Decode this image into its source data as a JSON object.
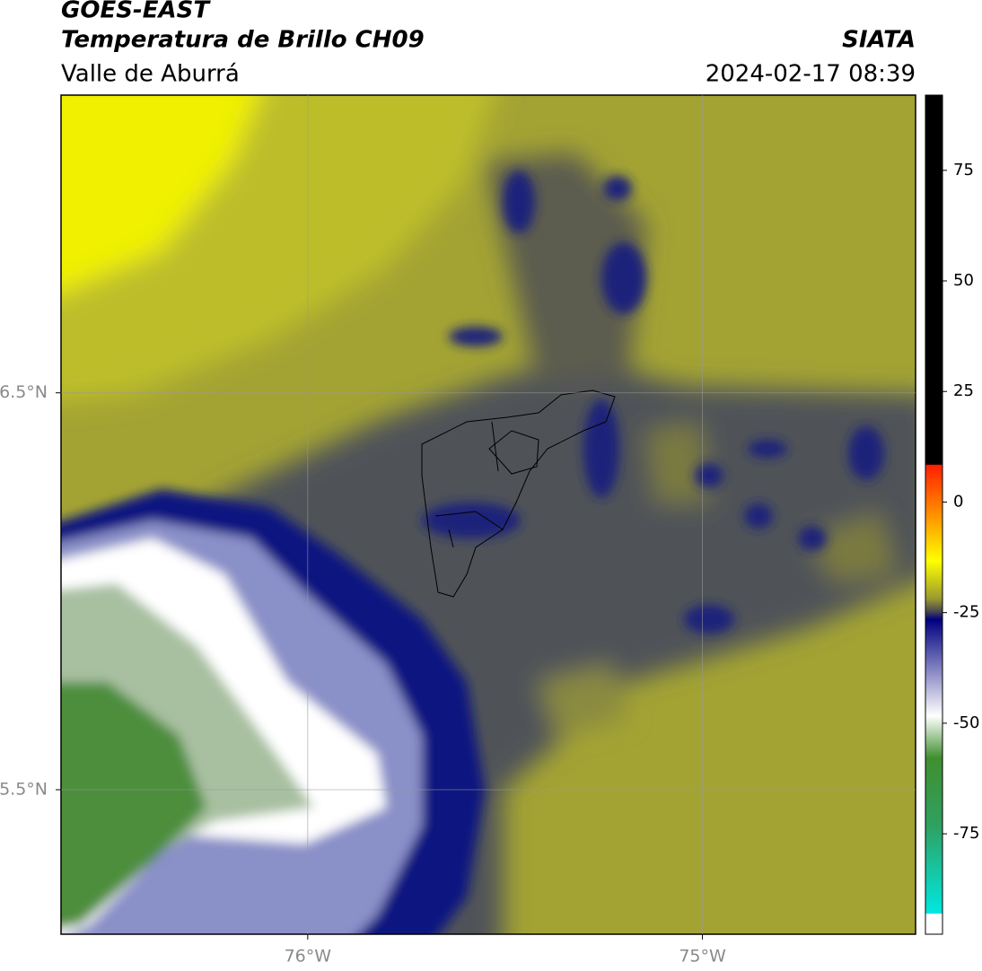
{
  "header": {
    "title": "GOES-EAST",
    "subtitle": "Temperatura de Brillo CH09",
    "region": "Valle de Aburrá",
    "source": "SIATA",
    "datetime": "2024-02-17 08:39"
  },
  "map": {
    "xlim": [
      -76.625,
      -74.46
    ],
    "ylim": [
      5.136,
      7.25
    ],
    "xticks": [
      {
        "value": -76,
        "label": "76°W"
      },
      {
        "value": -75,
        "label": "75°W"
      }
    ],
    "yticks": [
      {
        "value": 6.5,
        "label": "6.5°N"
      },
      {
        "value": 5.5,
        "label": "5.5°N"
      }
    ],
    "grid": true
  },
  "colorbar": {
    "lim": [
      -97.7,
      92
    ],
    "ticks": [
      75,
      50,
      25,
      0,
      -25,
      -50,
      -75
    ]
  }
}
